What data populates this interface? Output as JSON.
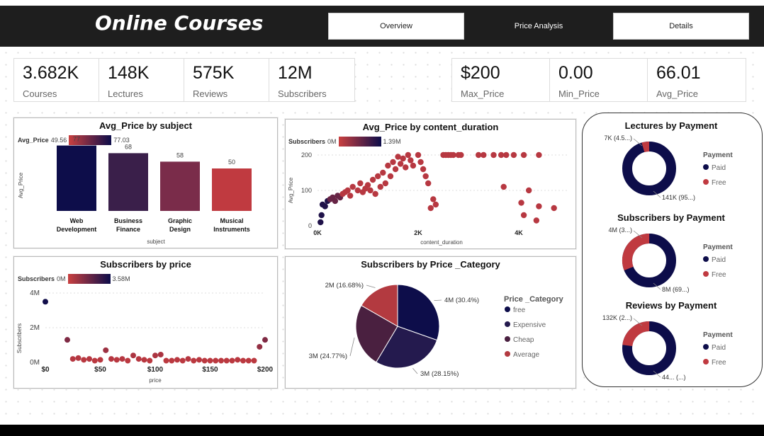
{
  "header": {
    "title": "Online Courses"
  },
  "nav": [
    {
      "label": "Overview"
    },
    {
      "label": "Price Analysis"
    },
    {
      "label": "Details"
    }
  ],
  "kpis_left": [
    {
      "value": "3.682K",
      "label": "Courses"
    },
    {
      "value": "148K",
      "label": "Lectures"
    },
    {
      "value": "575K",
      "label": "Reviews"
    },
    {
      "value": "12M",
      "label": "Subscribers"
    }
  ],
  "kpis_right": [
    {
      "value": "$200",
      "label": "Max_Price"
    },
    {
      "value": "0.00",
      "label": "Min_Price"
    },
    {
      "value": "66.01",
      "label": "Avg_Price"
    }
  ],
  "avg_price_subject": {
    "title": "Avg_Price by subject",
    "legend_label": "Avg_Price",
    "legend_min": "49.56",
    "legend_max": "77.03",
    "ylabel": "Avg_Price",
    "xlabel": "subject",
    "categories": [
      "Web Development",
      "Business Finance",
      "Graphic Design",
      "Musical Instruments"
    ],
    "values": [
      77,
      68,
      58,
      50
    ],
    "colors": [
      "#0d0d4a",
      "#3a1f4a",
      "#7a2c4a",
      "#c03a40"
    ]
  },
  "avg_price_duration": {
    "title": "Avg_Price by content_duration",
    "legend_label": "Subscribers",
    "legend_min": "0M",
    "legend_max": "1.39M",
    "ylabel": "Avg_Price",
    "xlabel": "content_duration",
    "yticks": [
      "0",
      "100",
      "200"
    ],
    "xticks": [
      "0K",
      "2K",
      "4K"
    ]
  },
  "subscribers_price": {
    "title": "Subscribers by price",
    "legend_label": "Subscribers",
    "legend_min": "0M",
    "legend_max": "3.58M",
    "ylabel": "Subscribers",
    "xlabel": "price",
    "yticks": [
      "0M",
      "2M",
      "4M"
    ],
    "xticks": [
      "$0",
      "$50",
      "$100",
      "$150",
      "$200"
    ]
  },
  "price_category": {
    "title": "Subscribers by Price _Category",
    "legend_title": "Price _Category",
    "legend": [
      {
        "label": "free",
        "color": "#0d0d4a"
      },
      {
        "label": "Expensive",
        "color": "#241a4e"
      },
      {
        "label": "Cheap",
        "color": "#4a2040"
      },
      {
        "label": "Average",
        "color": "#b33a40"
      }
    ],
    "slice_labels": [
      "4M (30.4%)",
      "3M (28.15%)",
      "3M (24.77%)",
      "2M (16.68%)"
    ]
  },
  "payment": {
    "legend_title": "Payment",
    "paid_label": "Paid",
    "free_label": "Free",
    "paid_color": "#0d0d4a",
    "free_color": "#c03a40",
    "charts": [
      {
        "title": "Lectures by Payment",
        "free_label": "7K (4.5...)",
        "paid_label": "141K (95...)"
      },
      {
        "title": "Subscribers by Payment",
        "free_label": "4M (3...)",
        "paid_label": "8M (69...)"
      },
      {
        "title": "Reviews by Payment",
        "free_label": "132K (2...)",
        "paid_label": "44... (...)"
      }
    ]
  },
  "chart_data": [
    {
      "type": "bar",
      "title": "Avg_Price by subject",
      "categories": [
        "Web Development",
        "Business Finance",
        "Graphic Design",
        "Musical Instruments"
      ],
      "values": [
        77,
        68,
        58,
        50
      ],
      "xlabel": "subject",
      "ylabel": "Avg_Price"
    },
    {
      "type": "scatter",
      "title": "Avg_Price by content_duration",
      "xlabel": "content_duration",
      "ylabel": "Avg_Price",
      "xlim": [
        0,
        5000
      ],
      "ylim": [
        0,
        200
      ],
      "points": [
        [
          60,
          10
        ],
        [
          80,
          30
        ],
        [
          100,
          60
        ],
        [
          150,
          55
        ],
        [
          200,
          70
        ],
        [
          250,
          75
        ],
        [
          300,
          80
        ],
        [
          350,
          70
        ],
        [
          400,
          85
        ],
        [
          450,
          80
        ],
        [
          500,
          90
        ],
        [
          550,
          95
        ],
        [
          600,
          100
        ],
        [
          650,
          85
        ],
        [
          700,
          110
        ],
        [
          800,
          100
        ],
        [
          850,
          120
        ],
        [
          900,
          95
        ],
        [
          950,
          105
        ],
        [
          1000,
          115
        ],
        [
          1050,
          100
        ],
        [
          1100,
          130
        ],
        [
          1150,
          90
        ],
        [
          1200,
          140
        ],
        [
          1250,
          110
        ],
        [
          1300,
          150
        ],
        [
          1350,
          120
        ],
        [
          1400,
          170
        ],
        [
          1450,
          140
        ],
        [
          1500,
          180
        ],
        [
          1550,
          160
        ],
        [
          1600,
          195
        ],
        [
          1650,
          175
        ],
        [
          1700,
          190
        ],
        [
          1750,
          165
        ],
        [
          1800,
          200
        ],
        [
          1850,
          185
        ],
        [
          1900,
          170
        ],
        [
          2000,
          200
        ],
        [
          2050,
          180
        ],
        [
          2100,
          160
        ],
        [
          2150,
          140
        ],
        [
          2200,
          120
        ],
        [
          2250,
          50
        ],
        [
          2300,
          75
        ],
        [
          2350,
          60
        ],
        [
          2500,
          200
        ],
        [
          2550,
          200
        ],
        [
          2600,
          200
        ],
        [
          2650,
          200
        ],
        [
          2700,
          200
        ],
        [
          2800,
          200
        ],
        [
          2850,
          200
        ],
        [
          3200,
          200
        ],
        [
          3300,
          200
        ],
        [
          3500,
          200
        ],
        [
          3650,
          200
        ],
        [
          3750,
          200
        ],
        [
          3900,
          200
        ],
        [
          4100,
          200
        ],
        [
          4400,
          200
        ],
        [
          3700,
          110
        ],
        [
          4200,
          100
        ],
        [
          4050,
          65
        ],
        [
          4400,
          55
        ],
        [
          4100,
          30
        ],
        [
          4700,
          50
        ],
        [
          4350,
          15
        ]
      ]
    },
    {
      "type": "scatter",
      "title": "Subscribers by price",
      "xlabel": "price",
      "ylabel": "Subscribers",
      "xlim": [
        0,
        200
      ],
      "ylim": [
        0,
        4
      ],
      "points": [
        [
          0,
          3.5
        ],
        [
          20,
          1.3
        ],
        [
          25,
          0.2
        ],
        [
          30,
          0.25
        ],
        [
          35,
          0.15
        ],
        [
          40,
          0.2
        ],
        [
          45,
          0.1
        ],
        [
          50,
          0.15
        ],
        [
          55,
          0.7
        ],
        [
          60,
          0.2
        ],
        [
          65,
          0.15
        ],
        [
          70,
          0.2
        ],
        [
          75,
          0.1
        ],
        [
          80,
          0.4
        ],
        [
          85,
          0.2
        ],
        [
          90,
          0.15
        ],
        [
          95,
          0.1
        ],
        [
          100,
          0.4
        ],
        [
          105,
          0.45
        ],
        [
          110,
          0.1
        ],
        [
          115,
          0.1
        ],
        [
          120,
          0.15
        ],
        [
          125,
          0.1
        ],
        [
          130,
          0.2
        ],
        [
          135,
          0.1
        ],
        [
          140,
          0.15
        ],
        [
          145,
          0.1
        ],
        [
          150,
          0.1
        ],
        [
          155,
          0.1
        ],
        [
          160,
          0.1
        ],
        [
          165,
          0.1
        ],
        [
          170,
          0.1
        ],
        [
          175,
          0.15
        ],
        [
          180,
          0.1
        ],
        [
          185,
          0.1
        ],
        [
          190,
          0.1
        ],
        [
          195,
          0.9
        ],
        [
          200,
          1.3
        ]
      ]
    },
    {
      "type": "pie",
      "title": "Subscribers by Price _Category",
      "categories": [
        "free",
        "Expensive",
        "Cheap",
        "Average"
      ],
      "values": [
        30.4,
        28.15,
        24.77,
        16.68
      ]
    },
    {
      "type": "pie",
      "title": "Lectures by Payment",
      "categories": [
        "Paid",
        "Free"
      ],
      "values": [
        95.5,
        4.5
      ]
    },
    {
      "type": "pie",
      "title": "Subscribers by Payment",
      "categories": [
        "Paid",
        "Free"
      ],
      "values": [
        69,
        31
      ]
    },
    {
      "type": "pie",
      "title": "Reviews by Payment",
      "categories": [
        "Paid",
        "Free"
      ],
      "values": [
        77,
        23
      ]
    }
  ]
}
